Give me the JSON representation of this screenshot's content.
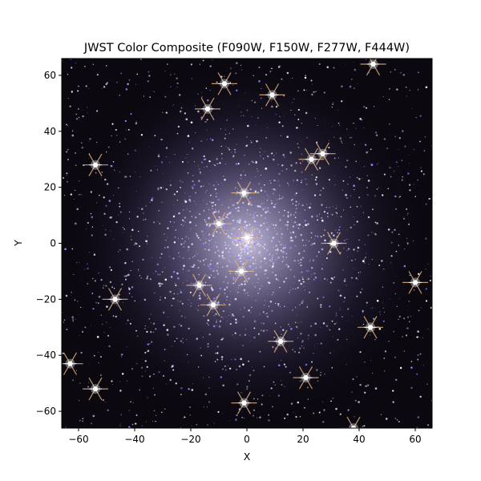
{
  "chart_data": {
    "type": "image",
    "title": "JWST Color Composite (F090W, F150W, F277W, F444W)",
    "xlabel": "X",
    "ylabel": "Y",
    "xlim": [
      -66,
      66
    ],
    "ylim": [
      -66,
      66
    ],
    "xticks": [
      -60,
      -40,
      -20,
      0,
      20,
      40,
      60
    ],
    "yticks": [
      -60,
      -40,
      -20,
      0,
      20,
      40,
      60
    ],
    "xtick_labels": [
      "−60",
      "−40",
      "−20",
      "0",
      "20",
      "40",
      "60"
    ],
    "ytick_labels": [
      "−60",
      "−40",
      "−20",
      "0",
      "20",
      "40",
      "60"
    ],
    "grid": false,
    "background_color": "#0b0810",
    "star_color": "#d9d2ff",
    "spike_color": "#e0b27a",
    "bright_stars": [
      {
        "x": -8,
        "y": 57
      },
      {
        "x": -14,
        "y": 48
      },
      {
        "x": 9,
        "y": 53
      },
      {
        "x": -54,
        "y": 28
      },
      {
        "x": 23,
        "y": 30
      },
      {
        "x": 27,
        "y": 32
      },
      {
        "x": -1,
        "y": 18
      },
      {
        "x": 31,
        "y": 0
      },
      {
        "x": -17,
        "y": -15
      },
      {
        "x": -47,
        "y": -20
      },
      {
        "x": -12,
        "y": -22
      },
      {
        "x": 44,
        "y": -30
      },
      {
        "x": 12,
        "y": -35
      },
      {
        "x": -63,
        "y": -43
      },
      {
        "x": 21,
        "y": -48
      },
      {
        "x": -54,
        "y": -52
      },
      {
        "x": -1,
        "y": -57
      },
      {
        "x": 38,
        "y": -66
      },
      {
        "x": 60,
        "y": -14
      },
      {
        "x": 45,
        "y": 64
      },
      {
        "x": -2,
        "y": -10
      },
      {
        "x": 0,
        "y": 2
      },
      {
        "x": -10,
        "y": 7
      }
    ],
    "cluster_center": {
      "x": 0,
      "y": 0
    }
  }
}
